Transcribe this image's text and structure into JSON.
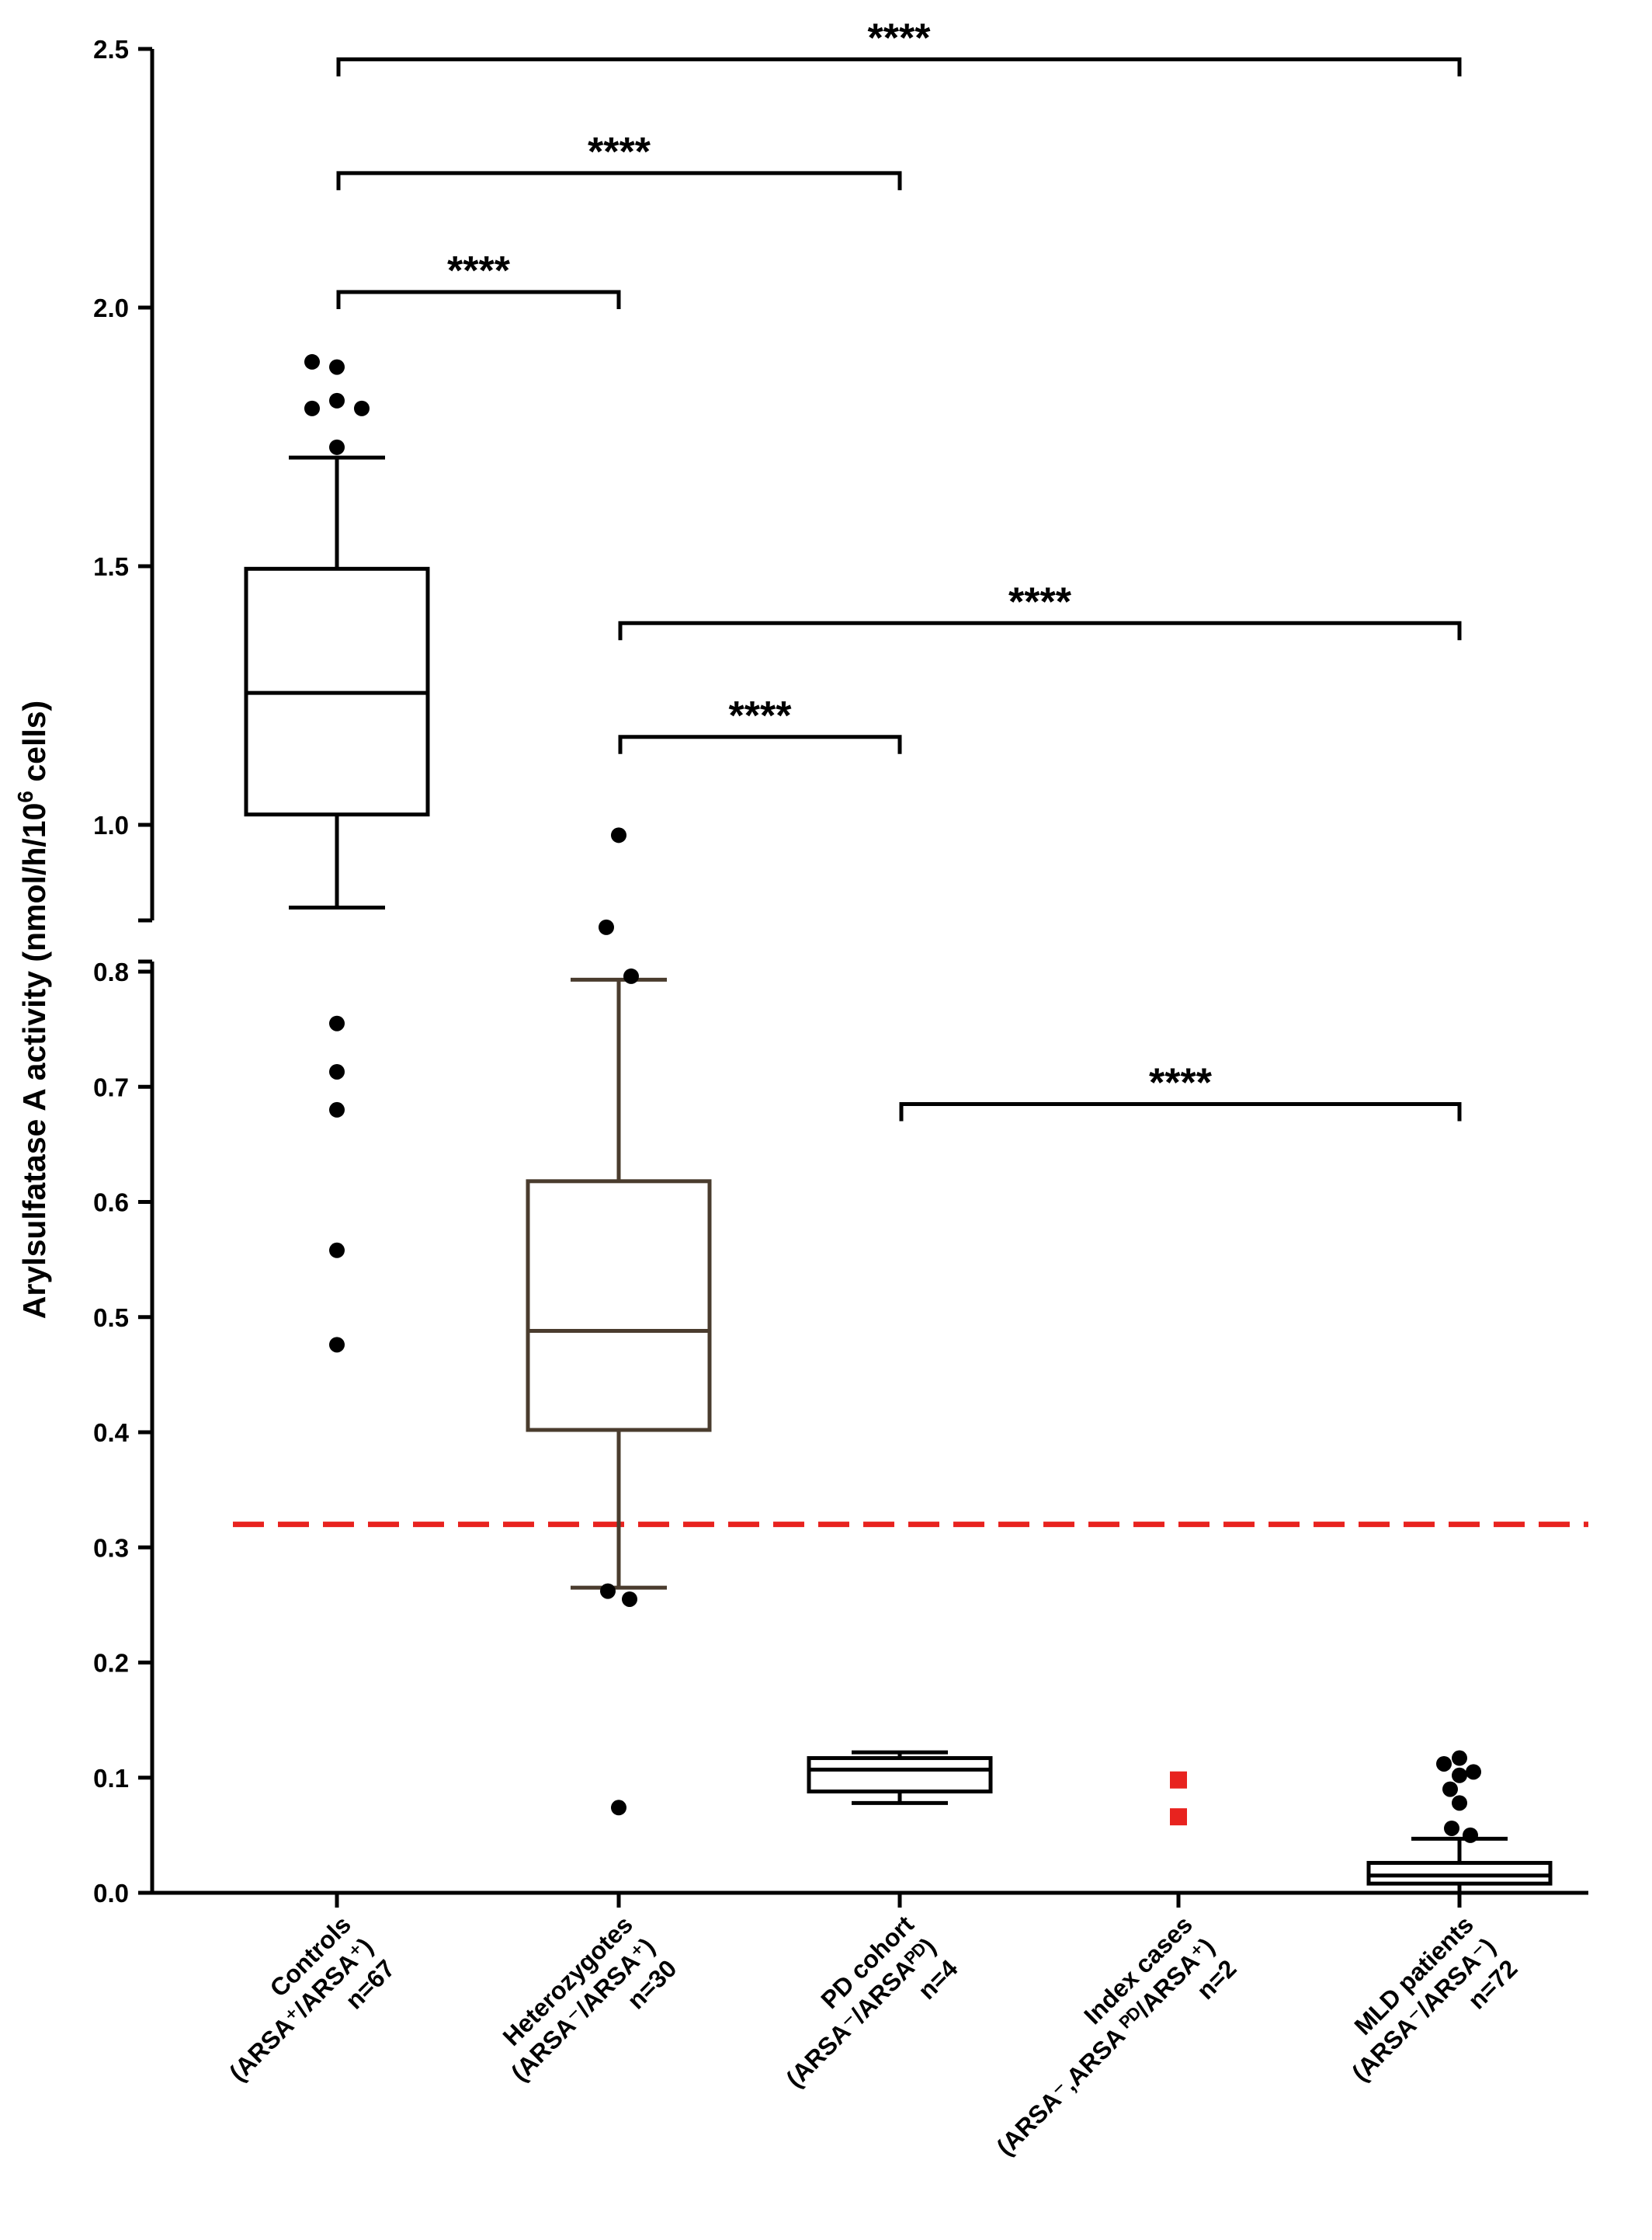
{
  "chart_data": {
    "type": "box",
    "ylabel_main": "Arylsulfatase A activity (nmol/h/10",
    "ylabel_sup": "6",
    "ylabel_tail": " cells)",
    "y_axis_broken": true,
    "y_segments": [
      {
        "range": [
          0.0,
          0.8
        ],
        "ticks": [
          "0.0",
          "0.1",
          "0.2",
          "0.3",
          "0.4",
          "0.5",
          "0.6",
          "0.7",
          "0.8"
        ]
      },
      {
        "range": [
          0.84,
          2.5
        ],
        "ticks": [
          "1.0",
          "1.5",
          "2.0",
          "2.5"
        ]
      }
    ],
    "threshold": {
      "value": 0.32,
      "color": "#e8231f",
      "style": "dashed"
    },
    "groups": [
      {
        "name": "Controls",
        "genotype_lines": [
          "(ARSA+/ARSA+)"
        ],
        "n_label": "n=67",
        "label_lines": [
          "Controls",
          "(ARSA⁺/ARSA⁺)",
          "n=67"
        ],
        "color": "#000000",
        "box": {
          "whisker_low": 0.84,
          "q1": 1.02,
          "median": 1.255,
          "q3": 1.495,
          "whisker_high": 1.71
        },
        "outliers": [
          1.895,
          1.885,
          1.805,
          1.82,
          1.805,
          1.73,
          0.755,
          0.713,
          0.68,
          0.558,
          0.476
        ]
      },
      {
        "name": "Heterozygotes",
        "n_label": "n=30",
        "label_lines": [
          "Heterozygotes",
          "(ARSA⁻/ARSA⁺)",
          "n=30"
        ],
        "color": "#4a3c2e",
        "box": {
          "whisker_low": 0.265,
          "q1": 0.402,
          "median": 0.488,
          "q3": 0.618,
          "whisker_high": 0.793
        },
        "outliers": [
          0.98,
          0.802,
          0.796,
          0.262,
          0.255,
          0.074
        ]
      },
      {
        "name": "PD cohort",
        "n_label": "n=4",
        "label_lines": [
          "PD cohort",
          "(ARSA⁻/ARSAᴾᴰ)",
          "n=4"
        ],
        "color": "#000000",
        "box": {
          "whisker_low": 0.078,
          "q1": 0.088,
          "median": 0.107,
          "q3": 0.117,
          "whisker_high": 0.122
        },
        "outliers": []
      },
      {
        "name": "Index cases",
        "n_label": "n=2",
        "label_lines": [
          "Index cases",
          "(ARSA⁻,ARSA ᴾᴰ/ARSA⁺)",
          "n=2"
        ],
        "color": "#e8231f",
        "points": [
          0.098,
          0.066
        ]
      },
      {
        "name": "MLD patients",
        "n_label": "n=72",
        "label_lines": [
          "MLD patients",
          "(ARSA⁻/ARSA⁻)",
          "n=72"
        ],
        "color": "#000000",
        "box": {
          "whisker_low": 0.0,
          "q1": 0.008,
          "median": 0.015,
          "q3": 0.026,
          "whisker_high": 0.047
        },
        "outliers": [
          0.117,
          0.112,
          0.105,
          0.102,
          0.09,
          0.078,
          0.056,
          0.05
        ]
      }
    ],
    "comparisons": [
      {
        "from": 0,
        "to": 4,
        "y": 2.48,
        "label": "****"
      },
      {
        "from": 0,
        "to": 2,
        "y": 2.26,
        "label": "****"
      },
      {
        "from": 0,
        "to": 1,
        "y": 2.03,
        "label": "****"
      },
      {
        "from": 1,
        "to": 4,
        "y": 1.39,
        "label": "****"
      },
      {
        "from": 1,
        "to": 2,
        "y": 1.17,
        "label": "****"
      },
      {
        "from": 2,
        "to": 4,
        "y": 0.685,
        "label": "****"
      }
    ]
  }
}
